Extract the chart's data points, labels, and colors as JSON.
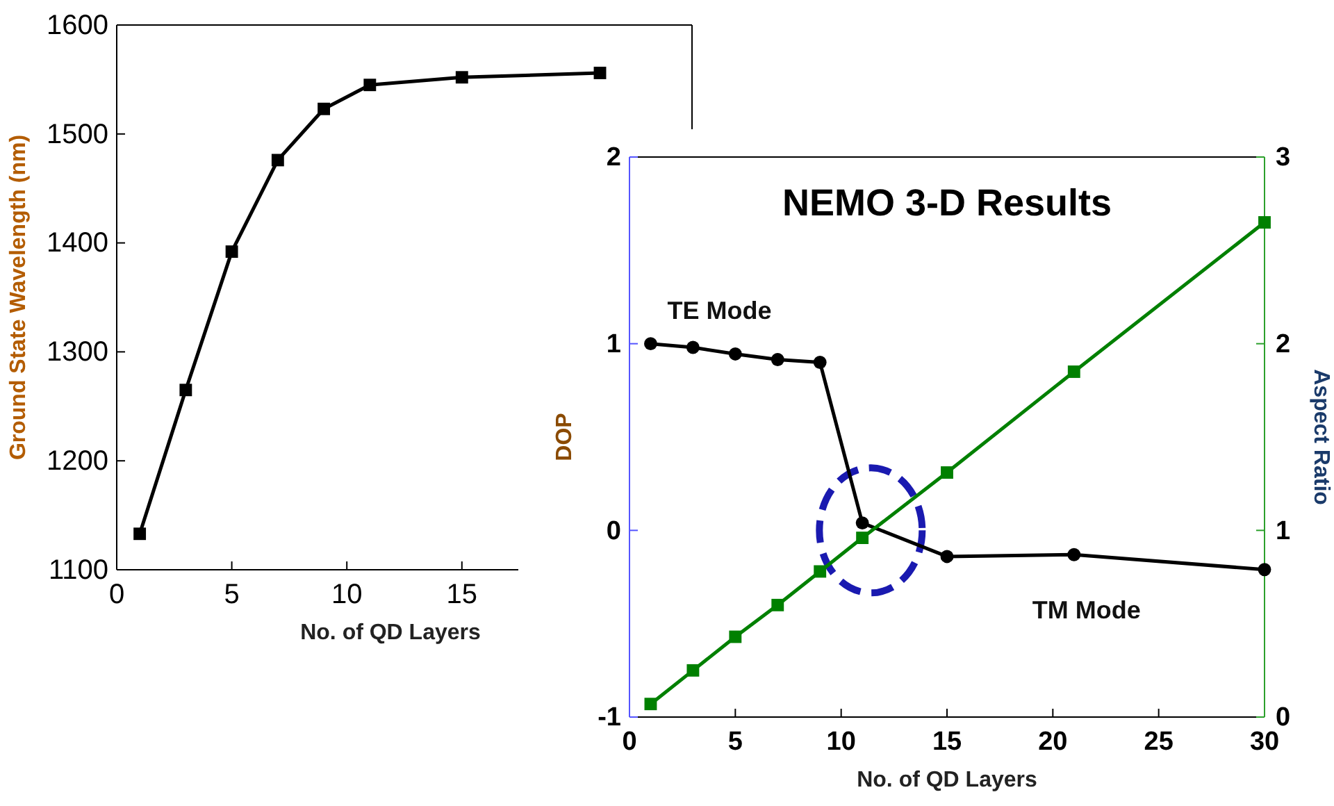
{
  "chart_data": [
    {
      "type": "line",
      "xlabel": "No. of QD Layers",
      "ylabel": "Ground State Wavelength (nm)",
      "marker": "square",
      "color": "#000000",
      "x": [
        1,
        3,
        5,
        7,
        9,
        11,
        15,
        21
      ],
      "values": [
        1133,
        1265,
        1392,
        1476,
        1523,
        1545,
        1552,
        1556
      ],
      "xlim": [
        0,
        25
      ],
      "xticks": [
        0,
        5,
        10,
        15
      ],
      "ylim": [
        1100,
        1600
      ],
      "yticks": [
        1100,
        1200,
        1300,
        1400,
        1500,
        1600
      ]
    },
    {
      "type": "line",
      "title": "NEMO 3-D Results",
      "xlabel": "No. of QD Layers",
      "ylabel": "DOP",
      "y2label": "Aspect Ratio",
      "series": [
        {
          "color": "#000000",
          "marker": "circle",
          "x": [
            1,
            3,
            5,
            7,
            9,
            11,
            15,
            21,
            30
          ],
          "values": [
            1.0,
            0.98,
            0.945,
            0.915,
            0.9,
            0.04,
            -0.14,
            -0.13,
            -0.21
          ]
        },
        {
          "color": "#008000",
          "marker": "square",
          "axis": "y2",
          "x": [
            1,
            3,
            5,
            7,
            9,
            11,
            15,
            21,
            30
          ],
          "values": [
            0.07,
            0.25,
            0.43,
            0.6,
            0.78,
            0.96,
            1.31,
            1.85,
            2.65
          ]
        }
      ],
      "annotations": [
        {
          "text": "TE Mode",
          "x": 1,
          "y": 1.0
        },
        {
          "text": "TM Mode",
          "x": 21,
          "y": -0.13
        }
      ],
      "xlim": [
        0,
        30
      ],
      "xticks": [
        0,
        5,
        10,
        15,
        20,
        25,
        30
      ],
      "ylim": [
        -1,
        2
      ],
      "yticks": [
        -1,
        0,
        1,
        2
      ],
      "y2lim": [
        0,
        3
      ],
      "y2ticks": [
        0,
        1,
        2,
        3
      ]
    }
  ]
}
